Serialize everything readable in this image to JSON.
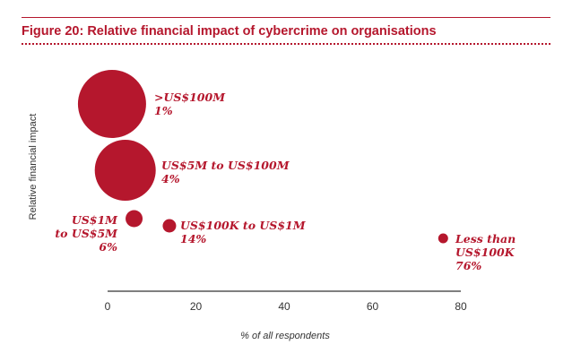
{
  "figure": {
    "title": "Figure 20: Relative financial impact of cybercrime on organisations"
  },
  "colors": {
    "accent": "#b5172d",
    "axis": "#333333"
  },
  "chart_data": {
    "type": "scatter",
    "title": "Figure 20: Relative financial impact of cybercrime on organisations",
    "xlabel": "% of all respondents",
    "ylabel": "Relative financial impact",
    "xlim": [
      0,
      80
    ],
    "xticks": [
      0,
      20,
      40,
      60,
      80
    ],
    "grid": false,
    "legend": "none",
    "points": [
      {
        "category": ">US$100M",
        "x": 1,
        "pct_label": "1%",
        "lines": [
          ">US$100M",
          "1%"
        ],
        "label_side": "right"
      },
      {
        "category": "US$5M to US$100M",
        "x": 4,
        "pct_label": "4%",
        "lines": [
          "US$5M to US$100M",
          "4%"
        ],
        "label_side": "right"
      },
      {
        "category": "US$1M to US$5M",
        "x": 6,
        "pct_label": "6%",
        "lines": [
          "US$1M",
          "to US$5M",
          "6%"
        ],
        "label_side": "left"
      },
      {
        "category": "US$100K to US$1M",
        "x": 14,
        "pct_label": "14%",
        "lines": [
          "US$100K to US$1M",
          "14%"
        ],
        "label_side": "right"
      },
      {
        "category": "Less than US$100K",
        "x": 76,
        "pct_label": "76%",
        "lines": [
          "Less than",
          "US$100K",
          "76%"
        ],
        "label_side": "right"
      }
    ]
  }
}
